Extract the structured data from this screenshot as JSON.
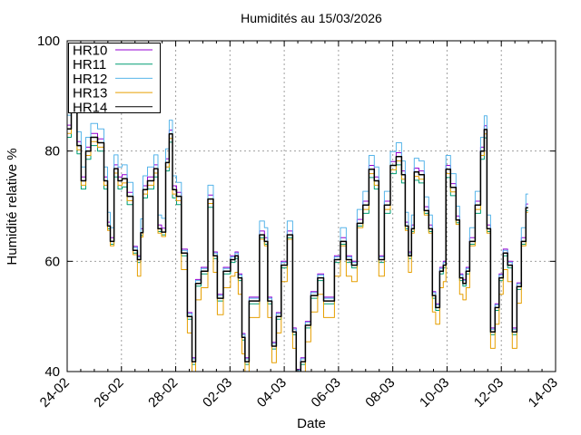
{
  "chart_data": {
    "type": "line",
    "title": "Humidités au 15/03/2026",
    "xlabel": "Date",
    "ylabel": "Humidité relative %",
    "x_unit": "days since 24-02 00:00",
    "xlim": [
      0,
      18
    ],
    "ylim": [
      40,
      100
    ],
    "x_ticks": [
      {
        "day": 0,
        "label": "24-02"
      },
      {
        "day": 2,
        "label": "26-02"
      },
      {
        "day": 4,
        "label": "28-02"
      },
      {
        "day": 6,
        "label": "02-03"
      },
      {
        "day": 8,
        "label": "04-03"
      },
      {
        "day": 10,
        "label": "06-03"
      },
      {
        "day": 12,
        "label": "08-03"
      },
      {
        "day": 14,
        "label": "10-03"
      },
      {
        "day": 16,
        "label": "12-03"
      },
      {
        "day": 18,
        "label": "14-03"
      }
    ],
    "y_ticks": [
      40,
      60,
      80,
      100
    ],
    "grid": true,
    "legend_position": "top-left",
    "x": [
      0.0,
      0.3,
      0.43,
      0.6,
      0.77,
      0.97,
      1.27,
      1.44,
      1.54,
      1.64,
      1.81,
      1.94,
      2.11,
      2.31,
      2.54,
      2.64,
      2.78,
      2.81,
      3.11,
      3.28,
      3.41,
      3.55,
      3.71,
      3.81,
      3.95,
      4.11,
      4.31,
      4.55,
      4.65,
      4.82,
      5.05,
      5.32,
      5.45,
      5.62,
      5.89,
      6.15,
      6.22,
      6.39,
      6.49,
      6.62,
      6.79,
      6.96,
      7.22,
      7.32,
      7.46,
      7.63,
      7.79,
      7.99,
      8.23,
      8.39,
      8.49,
      8.73,
      8.83,
      9.13,
      9.33,
      9.57,
      9.73,
      9.97,
      10.17,
      10.4,
      10.57,
      10.8,
      11.0,
      11.24,
      11.4,
      11.57,
      11.81,
      12.01,
      12.24,
      12.41,
      12.51,
      12.64,
      12.74,
      12.84,
      13.08,
      13.24,
      13.41,
      13.51,
      13.65,
      13.81,
      13.91,
      14.01,
      14.25,
      14.41,
      14.52,
      14.65,
      14.75,
      14.92,
      15.15,
      15.32,
      15.42,
      15.52,
      15.69,
      15.85,
      15.99,
      16.15,
      16.32,
      16.49,
      16.66,
      16.82,
      16.99
    ],
    "series": [
      {
        "name": "HR10",
        "color": "#9400d3",
        "values": [
          84.7,
          89.6,
          81.7,
          75.3,
          80.7,
          83.2,
          82.2,
          75.3,
          67.1,
          64.3,
          77.5,
          75.3,
          75.7,
          72.5,
          62.7,
          61.0,
          65.9,
          73.7,
          75.3,
          77.5,
          66.6,
          66.0,
          78.6,
          83.8,
          73.7,
          72.5,
          62.2,
          50.7,
          42.5,
          56.7,
          58.9,
          72.0,
          61.7,
          54.0,
          58.9,
          61.0,
          61.7,
          57.7,
          46.9,
          42.5,
          53.5,
          53.5,
          65.5,
          64.3,
          53.5,
          45.3,
          50.7,
          60.0,
          65.5,
          47.9,
          40.4,
          42.5,
          49.1,
          54.5,
          57.7,
          53.5,
          53.5,
          61.0,
          64.3,
          61.0,
          60.0,
          67.6,
          70.9,
          77.4,
          75.3,
          61.0,
          70.9,
          78.1,
          79.7,
          76.4,
          67.1,
          61.7,
          66.6,
          76.9,
          76.4,
          69.9,
          66.6,
          54.5,
          52.3,
          58.9,
          60.0,
          77.4,
          74.1,
          68.2,
          57.7,
          56.7,
          58.9,
          64.3,
          70.9,
          80.7,
          84.6,
          66.6,
          47.9,
          52.3,
          57.7,
          62.2,
          60.0,
          47.9,
          56.1,
          64.3,
          70.4
        ]
      },
      {
        "name": "HR11",
        "color": "#009e73",
        "values": [
          82.5,
          87.4,
          79.5,
          73.1,
          78.5,
          81.0,
          80.0,
          73.1,
          65.9,
          63.1,
          75.3,
          73.1,
          73.5,
          70.3,
          61.5,
          59.8,
          64.7,
          71.5,
          73.1,
          75.3,
          65.4,
          64.8,
          76.4,
          81.6,
          71.5,
          70.3,
          61.0,
          49.5,
          41.3,
          55.5,
          57.7,
          69.8,
          60.5,
          52.8,
          57.7,
          59.8,
          60.5,
          56.5,
          45.7,
          41.3,
          52.3,
          52.3,
          64.3,
          63.1,
          52.3,
          44.1,
          49.5,
          58.8,
          64.3,
          46.7,
          39.2,
          41.3,
          47.9,
          53.3,
          56.5,
          52.3,
          52.3,
          59.8,
          63.1,
          59.8,
          58.8,
          66.4,
          68.7,
          75.2,
          73.1,
          59.8,
          68.7,
          75.9,
          77.5,
          74.2,
          65.9,
          60.5,
          65.4,
          74.7,
          74.2,
          68.7,
          65.4,
          53.3,
          51.1,
          57.7,
          58.8,
          75.2,
          71.9,
          67.0,
          56.5,
          55.5,
          57.7,
          63.1,
          68.7,
          78.5,
          82.4,
          65.4,
          46.7,
          51.1,
          56.5,
          61.0,
          58.8,
          46.7,
          54.9,
          63.1,
          69.2
        ]
      },
      {
        "name": "HR12",
        "color": "#56b4e9",
        "values": [
          86.5,
          91.4,
          83.5,
          77.1,
          82.5,
          85.0,
          84.0,
          77.1,
          68.9,
          66.1,
          79.3,
          77.1,
          77.5,
          74.3,
          62.5,
          60.8,
          67.7,
          75.5,
          77.1,
          79.3,
          68.4,
          67.8,
          80.4,
          85.6,
          75.5,
          74.3,
          62.0,
          50.5,
          42.3,
          56.5,
          58.7,
          73.8,
          61.5,
          53.8,
          58.7,
          60.8,
          61.5,
          57.5,
          46.7,
          42.3,
          53.3,
          53.3,
          67.3,
          66.1,
          53.3,
          45.1,
          50.5,
          59.8,
          67.3,
          47.7,
          40.2,
          42.3,
          48.9,
          54.3,
          57.5,
          53.3,
          53.3,
          60.8,
          66.1,
          60.8,
          59.8,
          69.4,
          72.7,
          79.2,
          77.1,
          60.8,
          72.7,
          79.9,
          81.5,
          78.2,
          68.9,
          61.5,
          68.4,
          78.7,
          78.2,
          71.7,
          68.4,
          54.3,
          52.1,
          58.7,
          59.8,
          79.2,
          75.9,
          70.0,
          57.5,
          56.5,
          58.7,
          66.1,
          72.7,
          82.5,
          86.4,
          68.4,
          47.7,
          52.1,
          57.5,
          62.0,
          59.8,
          47.7,
          55.9,
          66.1,
          72.2
        ]
      },
      {
        "name": "HR13",
        "color": "#e69f00",
        "values": [
          83.2,
          88.1,
          80.2,
          73.8,
          79.2,
          81.7,
          80.7,
          73.8,
          65.6,
          62.8,
          76.0,
          73.8,
          74.2,
          71.0,
          61.2,
          57.3,
          64.4,
          72.2,
          73.8,
          76.0,
          65.1,
          64.5,
          77.1,
          82.3,
          72.2,
          71.0,
          58.5,
          47.0,
          38.8,
          53.0,
          55.2,
          70.5,
          58.0,
          50.3,
          55.2,
          57.3,
          58.0,
          54.0,
          43.2,
          38.8,
          49.8,
          49.8,
          64.0,
          62.8,
          49.8,
          41.6,
          47.0,
          56.3,
          64.0,
          44.2,
          36.7,
          38.8,
          45.4,
          50.8,
          54.0,
          49.8,
          49.8,
          57.3,
          62.8,
          57.3,
          56.3,
          66.1,
          69.4,
          75.9,
          73.8,
          57.3,
          69.4,
          76.6,
          78.2,
          74.9,
          65.6,
          58.0,
          65.1,
          75.4,
          74.9,
          68.4,
          65.1,
          50.8,
          48.6,
          55.2,
          56.3,
          75.9,
          72.6,
          66.7,
          54.0,
          53.0,
          55.2,
          62.8,
          69.4,
          79.2,
          83.1,
          65.1,
          44.2,
          48.6,
          54.0,
          58.5,
          56.3,
          44.2,
          52.4,
          62.8,
          68.9
        ]
      },
      {
        "name": "HR14",
        "color": "#000000",
        "values": [
          84.0,
          88.9,
          81.0,
          74.6,
          80.0,
          82.5,
          81.5,
          74.6,
          66.4,
          63.6,
          76.8,
          74.6,
          75.0,
          71.8,
          62.0,
          60.3,
          65.2,
          73.0,
          74.6,
          76.8,
          65.9,
          65.3,
          77.9,
          83.1,
          73.0,
          71.8,
          61.5,
          50.0,
          41.8,
          56.0,
          58.2,
          71.3,
          61.0,
          53.3,
          58.2,
          60.3,
          61.0,
          57.0,
          46.2,
          41.8,
          52.8,
          52.8,
          64.8,
          63.6,
          52.8,
          44.6,
          50.0,
          59.3,
          64.8,
          47.2,
          39.7,
          41.8,
          48.4,
          53.8,
          57.0,
          52.8,
          52.8,
          60.3,
          63.6,
          60.3,
          59.3,
          66.9,
          70.2,
          76.7,
          74.6,
          60.3,
          70.2,
          77.4,
          79.0,
          75.7,
          66.4,
          61.0,
          65.9,
          76.2,
          75.7,
          69.2,
          65.9,
          53.8,
          51.6,
          58.2,
          59.3,
          76.7,
          73.4,
          67.5,
          57.0,
          56.0,
          58.2,
          63.6,
          70.2,
          80.0,
          83.9,
          65.9,
          47.2,
          51.6,
          57.0,
          61.5,
          59.3,
          47.2,
          55.4,
          63.6,
          69.7
        ]
      }
    ]
  }
}
